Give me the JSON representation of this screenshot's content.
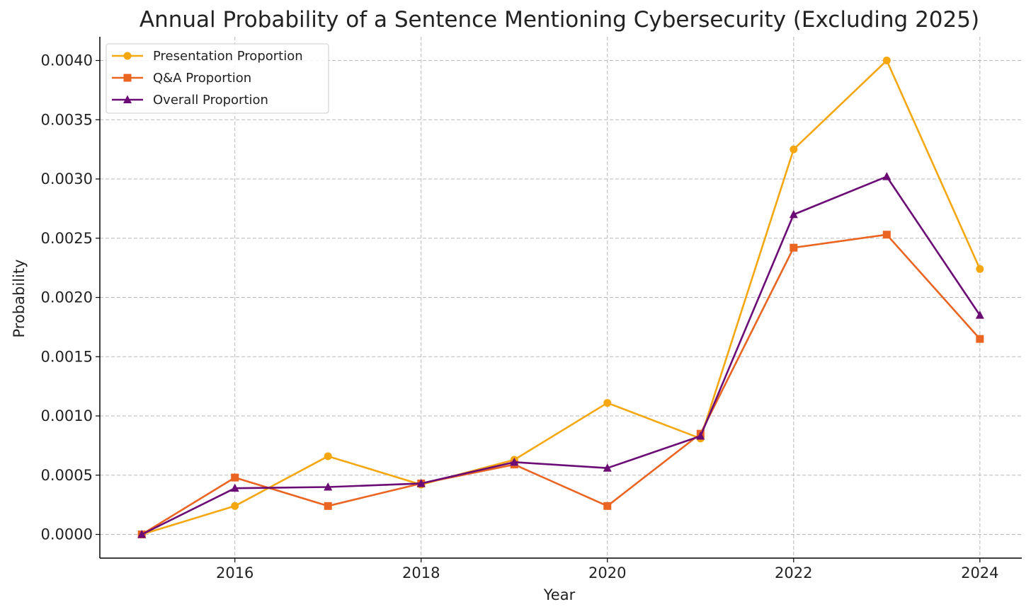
{
  "chart_data": {
    "type": "line",
    "title": "Annual Probability of a Sentence Mentioning Cybersecurity (Excluding 2025)",
    "xlabel": "Year",
    "ylabel": "Probability",
    "xlim": [
      2014.55,
      2024.45
    ],
    "ylim": [
      -0.0002,
      0.0042
    ],
    "grid": true,
    "legend_position": "top-left",
    "x_ticks": [
      2016,
      2018,
      2020,
      2022,
      2024
    ],
    "y_ticks": [
      0.0,
      0.0005,
      0.001,
      0.0015,
      0.002,
      0.0025,
      0.003,
      0.0035,
      0.004
    ],
    "x_tick_labels": [
      "2016",
      "2018",
      "2020",
      "2022",
      "2024"
    ],
    "y_tick_labels": [
      "0.0000",
      "0.0005",
      "0.0010",
      "0.0015",
      "0.0020",
      "0.0025",
      "0.0030",
      "0.0035",
      "0.0040"
    ],
    "x": [
      2015,
      2016,
      2017,
      2018,
      2019,
      2020,
      2021,
      2022,
      2023,
      2024
    ],
    "series": [
      {
        "name": "Presentation Proportion",
        "color": "#F5A711",
        "marker": "circle",
        "values": [
          0.0,
          0.00024,
          0.00066,
          0.00042,
          0.00063,
          0.00111,
          0.00081,
          0.00325,
          0.004,
          0.00224
        ]
      },
      {
        "name": "Q&A Proportion",
        "color": "#EA6422",
        "marker": "square",
        "values": [
          0.0,
          0.00048,
          0.00024,
          0.00043,
          0.00059,
          0.00024,
          0.00085,
          0.00242,
          0.00253,
          0.00165
        ]
      },
      {
        "name": "Overall Proportion",
        "color": "#6B0B75",
        "marker": "triangle",
        "values": [
          0.0,
          0.00039,
          0.0004,
          0.00043,
          0.00061,
          0.00056,
          0.00083,
          0.0027,
          0.00302,
          0.00185
        ]
      }
    ]
  }
}
